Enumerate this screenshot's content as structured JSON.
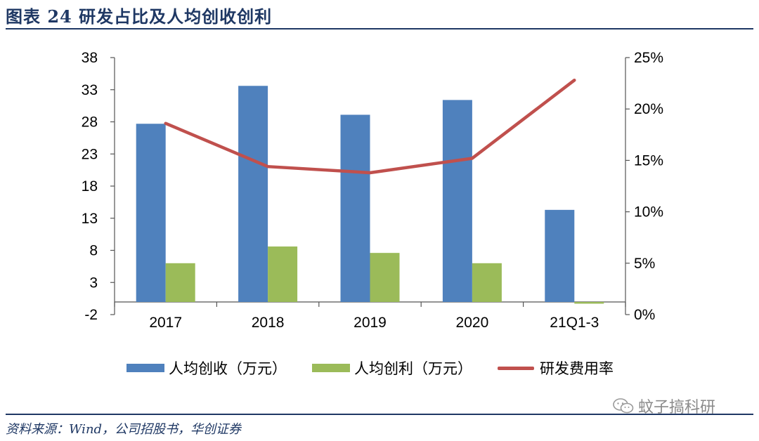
{
  "figure": {
    "title": "图表 24  研发占比及人均创收创利",
    "source": "资料来源：Wind，公司招股书，华创证券",
    "watermark": "蚊子搞科研"
  },
  "colors": {
    "bar_revenue": "#4f81bd",
    "bar_profit": "#9bbb59",
    "line_rd": "#c0504d",
    "title_blue": "#1f3864"
  },
  "icons": {
    "watermark": "wechat-icon"
  },
  "chart_data": {
    "type": "bar",
    "categories": [
      "2017",
      "2018",
      "2019",
      "2020",
      "21Q1-3"
    ],
    "series": [
      {
        "name": "人均创收（万元）",
        "type": "bar",
        "axis": "left",
        "values": [
          27.7,
          33.6,
          29.1,
          31.4,
          14.3
        ]
      },
      {
        "name": "人均创利（万元）",
        "type": "bar",
        "axis": "left",
        "values": [
          6.0,
          8.6,
          7.6,
          6.0,
          -0.3
        ]
      },
      {
        "name": "研发费用率",
        "type": "line",
        "axis": "right",
        "values": [
          18.6,
          14.4,
          13.8,
          15.2,
          22.8
        ]
      }
    ],
    "left_axis": {
      "ticks": [
        "38",
        "33",
        "28",
        "23",
        "18",
        "13",
        "8",
        "3",
        "-2"
      ],
      "range": [
        -2,
        38
      ]
    },
    "right_axis": {
      "ticks": [
        "25%",
        "20%",
        "15%",
        "10%",
        "5%",
        "0%"
      ],
      "range": [
        0,
        25
      ]
    },
    "legend_position": "bottom",
    "grid": false
  }
}
